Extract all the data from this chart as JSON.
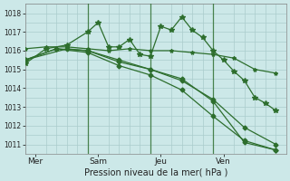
{
  "background_color": "#cce8e8",
  "grid_color": "#aacccc",
  "line_color": "#2d6e2d",
  "xlabel": "Pression niveau de la mer( hPa )",
  "ylim": [
    1010.5,
    1018.5
  ],
  "yticks": [
    1011,
    1012,
    1013,
    1014,
    1015,
    1016,
    1017,
    1018
  ],
  "xlim": [
    0,
    25
  ],
  "day_labels": [
    "Mer",
    "Sam",
    "Jeu",
    "Ven"
  ],
  "day_positions": [
    1,
    7,
    13,
    19
  ],
  "vline_positions": [
    6,
    12,
    18
  ],
  "vline_color": "#2d6e2d",
  "series": [
    {
      "x": [
        0,
        2,
        4,
        6,
        7,
        8,
        9,
        10,
        11,
        12,
        13,
        14,
        15,
        16,
        17,
        18,
        19,
        20,
        21,
        22,
        23,
        24
      ],
      "y": [
        1015.3,
        1016.1,
        1016.3,
        1017.0,
        1017.5,
        1016.2,
        1016.2,
        1016.6,
        1015.8,
        1015.7,
        1017.3,
        1017.1,
        1017.8,
        1017.1,
        1016.7,
        1016.0,
        1015.5,
        1014.9,
        1014.4,
        1013.5,
        1013.2,
        1012.8
      ],
      "marker": "*",
      "markersize": 4,
      "lw": 0.9
    },
    {
      "x": [
        0,
        2,
        4,
        6,
        8,
        10,
        12,
        14,
        16,
        18,
        20,
        22,
        24
      ],
      "y": [
        1016.1,
        1016.2,
        1016.2,
        1016.1,
        1016.0,
        1016.1,
        1016.0,
        1016.0,
        1015.9,
        1015.8,
        1015.6,
        1015.0,
        1014.8
      ],
      "marker": "*",
      "markersize": 3,
      "lw": 0.9
    },
    {
      "x": [
        0,
        4,
        6,
        9,
        12,
        15,
        18,
        21,
        24
      ],
      "y": [
        1015.5,
        1016.1,
        1016.0,
        1015.5,
        1015.0,
        1014.4,
        1013.4,
        1011.9,
        1011.0
      ],
      "marker": "D",
      "markersize": 2.5,
      "lw": 0.9
    },
    {
      "x": [
        0,
        3,
        6,
        9,
        12,
        15,
        18,
        21,
        24
      ],
      "y": [
        1015.5,
        1016.1,
        1016.0,
        1015.4,
        1015.0,
        1014.5,
        1013.3,
        1011.1,
        1010.7
      ],
      "marker": "D",
      "markersize": 2.5,
      "lw": 0.9
    },
    {
      "x": [
        0,
        3,
        6,
        9,
        12,
        15,
        18,
        21,
        24
      ],
      "y": [
        1015.5,
        1016.1,
        1015.9,
        1015.2,
        1014.7,
        1013.9,
        1012.5,
        1011.2,
        1010.7
      ],
      "marker": "D",
      "markersize": 2.5,
      "lw": 0.9
    }
  ]
}
